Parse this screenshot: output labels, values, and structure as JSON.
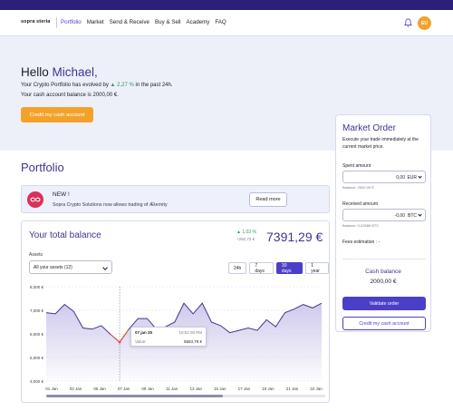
{
  "brand": {
    "logo_text": "sopra steria"
  },
  "nav": {
    "items": [
      {
        "label": "Portfolio",
        "active": true
      },
      {
        "label": "Market"
      },
      {
        "label": "Send & Receive"
      },
      {
        "label": "Buy & Sell"
      },
      {
        "label": "Academy"
      },
      {
        "label": "FAQ"
      }
    ],
    "avatar_initials": "EU"
  },
  "hero": {
    "greeting": "Hello",
    "user_name": "Michael,",
    "evolution_prefix": "Your Crypto Portfolio has evolved by",
    "evolution_pct": "▲ 2,27 %",
    "evolution_suffix": "in the past 24h.",
    "cash_balance_text": "Your cash account balance is 2000,00 €.",
    "credit_button": "Credit my cash account"
  },
  "portfolio": {
    "title": "Portfolio",
    "news": {
      "heading": "NEW !",
      "text": "Sopra Crypto Solutions now allows trading of Æternity",
      "button": "Read more"
    }
  },
  "balance": {
    "title": "Your total balance",
    "change_pct": "▲ 1,03 %",
    "change_abs": "+292,72 €",
    "value": "7391,29 €",
    "assets_label": "Assets",
    "assets_selected": "All your assets (12)",
    "ranges": [
      {
        "label": "24h"
      },
      {
        "label": "7 days"
      },
      {
        "label": "30 days",
        "active": true
      },
      {
        "label": "1 year"
      }
    ],
    "tooltip": {
      "date": "07 jan 25",
      "time": "10:51:00 PM",
      "label": "Value:",
      "value": "5663,78 €"
    }
  },
  "chart_data": {
    "type": "area",
    "ylim": [
      4000,
      8000
    ],
    "y_ticks": [
      "8,000 €",
      "7,000 €",
      "6,000 €",
      "5,000 €",
      "4,000 €"
    ],
    "x_ticks": [
      "01 Jan",
      "03 Jan",
      "05 Jan",
      "07 Jan",
      "09 Jan",
      "11 Jan",
      "13 Jan",
      "15 Jan",
      "17 Jan",
      "19 Jan",
      "21 Jan",
      "22 Jan"
    ],
    "series": [
      {
        "values": [
          6900,
          6850,
          7250,
          6950,
          6250,
          6200,
          6350,
          5980,
          5650,
          6200,
          6650,
          6650,
          6200,
          6300,
          6500,
          7300,
          6850,
          7300,
          6500,
          6350,
          6050,
          6150,
          6250,
          6150,
          6600,
          6300,
          6900,
          7050,
          7250,
          7100,
          7300
        ]
      }
    ],
    "highlight_index": 8,
    "line_color": "#3f3493",
    "fill_color": "#c9c4ea",
    "highlight_color": "#e0582c"
  },
  "order": {
    "title": "Market Order",
    "description": "Execute your trade immediately at the current market price.",
    "spent_label": "Spent amount",
    "spent_value": "0,00",
    "spent_currency": "EUR",
    "spent_balance": "Balance: 2000,00 €",
    "received_label": "Received amount",
    "received_value": "-0,00",
    "received_currency": "BTC",
    "received_balance": "Balance: 0,02566 BTC",
    "fees_label": "Fees estimation : -",
    "cash_title": "Cash balance",
    "cash_value": "2000,00 €",
    "validate_button": "Validate order",
    "credit_button": "Credit my cash account"
  },
  "colors": {
    "brand_dark": "#2b1f7a",
    "accent": "#4b3fc7",
    "orange": "#f2a22a",
    "positive": "#2a9d5c"
  }
}
